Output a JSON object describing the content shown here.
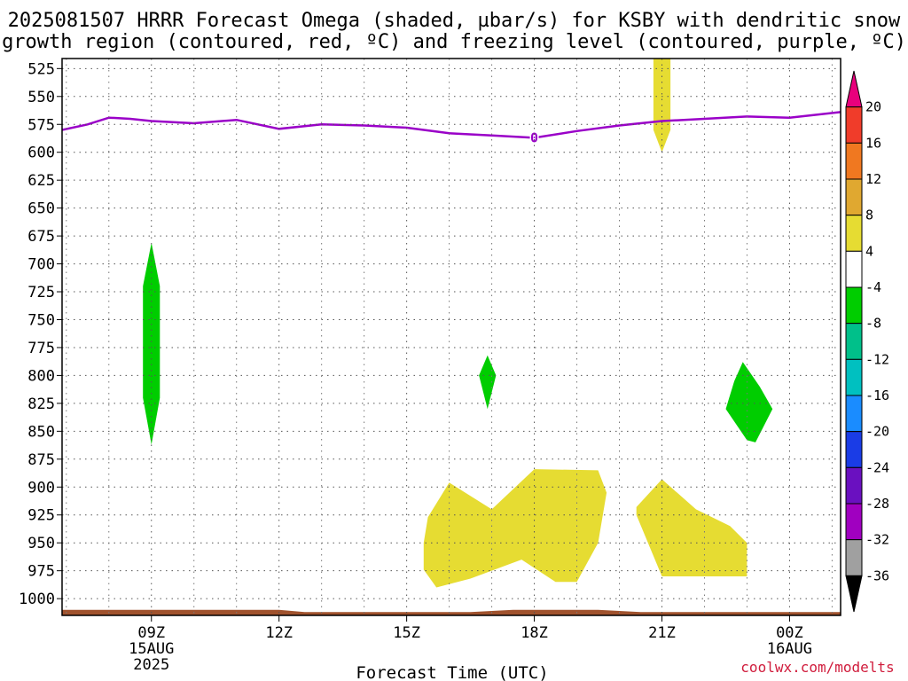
{
  "chart_data": {
    "type": "heatmap",
    "title_line1": "2025081507 HRRR Forecast Omega (shaded, µbar/s) for KSBY with dendritic snow",
    "title_line2": "growth region (contoured, red, ºC) and freezing level (contoured, purple, ºC)",
    "xlabel": "Forecast Time (UTC)",
    "credit": "coolwx.com/modelts",
    "x_range_hours": [
      6.9,
      25.2
    ],
    "y_ticks": [
      525,
      550,
      575,
      600,
      625,
      650,
      675,
      700,
      725,
      750,
      775,
      800,
      825,
      850,
      875,
      900,
      925,
      950,
      975,
      1000
    ],
    "y_range_hpa": [
      516,
      1015
    ],
    "x_ticks": [
      {
        "hour": 9,
        "label": "09Z",
        "sub1": "15AUG",
        "sub2": "2025"
      },
      {
        "hour": 12,
        "label": "12Z",
        "sub1": "",
        "sub2": ""
      },
      {
        "hour": 15,
        "label": "15Z",
        "sub1": "",
        "sub2": ""
      },
      {
        "hour": 18,
        "label": "18Z",
        "sub1": "",
        "sub2": ""
      },
      {
        "hour": 21,
        "label": "21Z",
        "sub1": "",
        "sub2": ""
      },
      {
        "hour": 24,
        "label": "00Z",
        "sub1": "16AUG",
        "sub2": ""
      }
    ],
    "colorbar": {
      "tick_labels": [
        "20",
        "16",
        "12",
        "8",
        "4",
        "-4",
        "-8",
        "-12",
        "-16",
        "-20",
        "-24",
        "-28",
        "-32",
        "-36"
      ],
      "colors": [
        "#e8007c",
        "#f03c2a",
        "#f07820",
        "#e0a830",
        "#e6dc32",
        "#ffffff",
        "#00cd00",
        "#00c08a",
        "#00c0c0",
        "#1a8cff",
        "#1a3ce6",
        "#6a10c0",
        "#a000c0",
        "#a0a0a0",
        "#000000"
      ]
    },
    "freezing_level": {
      "color": "#9a00c8",
      "contour_label": "0",
      "label_hour": 18.0,
      "points": [
        [
          6.9,
          580
        ],
        [
          7.5,
          575
        ],
        [
          8.0,
          569
        ],
        [
          8.5,
          570
        ],
        [
          9.0,
          572
        ],
        [
          10.0,
          574
        ],
        [
          11.0,
          571
        ],
        [
          12.0,
          579
        ],
        [
          13.0,
          575
        ],
        [
          14.0,
          576
        ],
        [
          15.0,
          578
        ],
        [
          16.0,
          583
        ],
        [
          17.0,
          585
        ],
        [
          18.0,
          587
        ],
        [
          19.0,
          581
        ],
        [
          20.0,
          576
        ],
        [
          21.0,
          572
        ],
        [
          22.0,
          570
        ],
        [
          23.0,
          568
        ],
        [
          24.0,
          569
        ],
        [
          25.2,
          564
        ]
      ]
    },
    "regions": [
      {
        "name": "region-omega-neg4-a",
        "fill": "#00cd00",
        "points": [
          [
            9.0,
            681
          ],
          [
            9.2,
            720
          ],
          [
            9.2,
            820
          ],
          [
            9.0,
            862
          ],
          [
            8.8,
            820
          ],
          [
            8.8,
            720
          ]
        ]
      },
      {
        "name": "region-omega-neg4-b",
        "fill": "#00cd00",
        "points": [
          [
            16.9,
            782
          ],
          [
            17.1,
            800
          ],
          [
            16.9,
            830
          ],
          [
            16.7,
            800
          ]
        ]
      },
      {
        "name": "region-omega-neg4-c",
        "fill": "#00cd00",
        "points": [
          [
            22.9,
            788
          ],
          [
            23.3,
            810
          ],
          [
            23.6,
            830
          ],
          [
            23.2,
            860
          ],
          [
            23.0,
            858
          ],
          [
            22.5,
            830
          ],
          [
            22.7,
            805
          ]
        ]
      },
      {
        "name": "region-omega-pos4-a",
        "fill": "#e6dc32",
        "points": [
          [
            20.8,
            510
          ],
          [
            21.2,
            510
          ],
          [
            21.2,
            580
          ],
          [
            21.0,
            600
          ],
          [
            20.8,
            580
          ]
        ]
      },
      {
        "name": "region-omega-pos4-b",
        "fill": "#e6dc32",
        "points": [
          [
            15.5,
            927
          ],
          [
            16.0,
            896
          ],
          [
            17.0,
            920
          ],
          [
            18.0,
            884
          ],
          [
            19.5,
            885
          ],
          [
            19.7,
            905
          ],
          [
            19.5,
            950
          ],
          [
            19.0,
            985
          ],
          [
            18.5,
            985
          ],
          [
            17.7,
            965
          ],
          [
            16.5,
            982
          ],
          [
            15.7,
            990
          ],
          [
            15.4,
            974
          ],
          [
            15.4,
            950
          ]
        ]
      },
      {
        "name": "region-omega-pos4-c",
        "fill": "#e6dc32",
        "points": [
          [
            20.4,
            918
          ],
          [
            21.0,
            893
          ],
          [
            21.8,
            920
          ],
          [
            22.6,
            935
          ],
          [
            23.0,
            950
          ],
          [
            23.0,
            980
          ],
          [
            21.0,
            980
          ],
          [
            20.4,
            925
          ]
        ]
      }
    ],
    "terrain": {
      "fill": "#a0522d",
      "points": [
        [
          6.9,
          1010
        ],
        [
          12.0,
          1010
        ],
        [
          12.6,
          1012
        ],
        [
          16.5,
          1012
        ],
        [
          17.5,
          1010
        ],
        [
          19.5,
          1010
        ],
        [
          20.5,
          1012
        ],
        [
          25.2,
          1012
        ],
        [
          25.2,
          1015
        ],
        [
          6.9,
          1015
        ]
      ]
    }
  }
}
